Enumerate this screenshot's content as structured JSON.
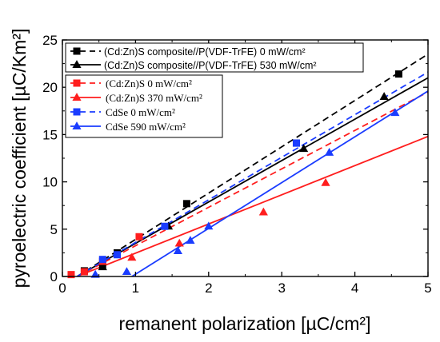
{
  "chart_data": {
    "type": "scatter",
    "xlabel": "remanent polarization [µC/cm²]",
    "ylabel": "pyroelectric coefficient [µC/Km²]",
    "xlim": [
      0,
      5
    ],
    "ylim": [
      0,
      25
    ],
    "xticks": [
      "0",
      "1",
      "2",
      "3",
      "4",
      "5"
    ],
    "yticks": [
      "0",
      "5",
      "10",
      "15",
      "20",
      "25"
    ],
    "grid": false,
    "legend_placement": "top-left",
    "series": [
      {
        "name": "(Cd:Zn)S composite//P(VDF-TrFE) 0 mW/cm²",
        "color": "#000000",
        "marker": "square",
        "line": "dashed",
        "points": [
          [
            0.3,
            0.6
          ],
          [
            0.55,
            1.2
          ],
          [
            0.75,
            2.5
          ],
          [
            1.7,
            7.7
          ],
          [
            3.2,
            14.1
          ],
          [
            4.6,
            21.4
          ]
        ],
        "fit": [
          [
            0.2,
            0.0
          ],
          [
            5.0,
            23.5
          ]
        ]
      },
      {
        "name": "(Cd:Zn)S composite//P(VDF-TrFE) 530 mW/cm²",
        "color": "#000000",
        "marker": "triangle",
        "line": "solid",
        "points": [
          [
            0.55,
            1.0
          ],
          [
            1.45,
            5.3
          ],
          [
            3.3,
            13.5
          ],
          [
            4.4,
            19.0
          ]
        ],
        "fit": [
          [
            0.2,
            0.0
          ],
          [
            5.0,
            21.0
          ]
        ]
      },
      {
        "name": "(Cd:Zn)S 0 mW/cm²",
        "color": "#ff1e1e",
        "marker": "square",
        "line": "dashed",
        "points": [
          [
            0.12,
            0.2
          ],
          [
            0.3,
            0.5
          ],
          [
            0.55,
            1.6
          ],
          [
            1.05,
            4.2
          ]
        ],
        "fit": [
          [
            0.2,
            0.0
          ],
          [
            5.0,
            19.5
          ]
        ]
      },
      {
        "name": "(Cd:Zn)S 370 mW/cm²",
        "color": "#ff1e1e",
        "marker": "triangle",
        "line": "solid",
        "points": [
          [
            0.95,
            2.0
          ],
          [
            1.6,
            3.5
          ],
          [
            2.75,
            6.8
          ],
          [
            3.6,
            9.9
          ]
        ],
        "fit": [
          [
            0.2,
            0.0
          ],
          [
            5.0,
            14.8
          ]
        ]
      },
      {
        "name": "CdSe 0 mW/cm²",
        "color": "#1a3cff",
        "marker": "square",
        "line": "dashed",
        "points": [
          [
            0.55,
            1.8
          ],
          [
            0.75,
            2.3
          ],
          [
            1.4,
            5.3
          ],
          [
            3.2,
            14.1
          ]
        ],
        "fit": [
          [
            0.2,
            0.0
          ],
          [
            5.0,
            21.6
          ]
        ]
      },
      {
        "name": "CdSe 590 mW/cm²",
        "color": "#1a3cff",
        "marker": "triangle",
        "line": "solid",
        "points": [
          [
            0.45,
            0.2
          ],
          [
            0.88,
            0.5
          ],
          [
            1.58,
            2.7
          ],
          [
            1.75,
            3.8
          ],
          [
            2.0,
            5.3
          ],
          [
            3.65,
            13.1
          ],
          [
            4.55,
            17.3
          ]
        ],
        "fit": [
          [
            0.95,
            0.0
          ],
          [
            5.0,
            19.6
          ]
        ]
      }
    ]
  }
}
